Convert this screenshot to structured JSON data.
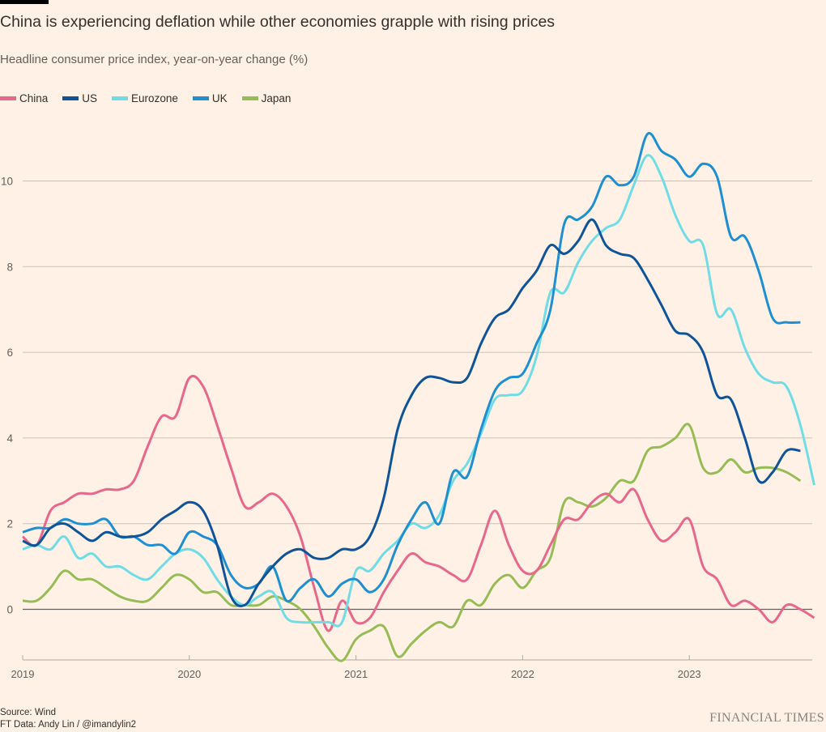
{
  "header": {
    "title": "China is experiencing deflation while other economies grapple with rising prices",
    "subtitle": "Headline consumer price index, year-on-year change (%)"
  },
  "footer": {
    "source": "Source: Wind",
    "credit": "FT Data: Andy Lin / @imandylin2",
    "brand": "FINANCIAL TIMES"
  },
  "chart_data": {
    "type": "line",
    "title": "China is experiencing deflation while other economies grapple with rising prices",
    "subtitle": "Headline consumer price index, year-on-year change (%)",
    "xlabel": "",
    "ylabel": "",
    "x_start": "2019-01",
    "x_unit": "month",
    "xlim": [
      "2019-01",
      "2023-10"
    ],
    "ylim": [
      -1.2,
      11.2
    ],
    "yticks": [
      0,
      2,
      4,
      6,
      8,
      10
    ],
    "xticks": [
      "2019",
      "2020",
      "2021",
      "2022",
      "2023"
    ],
    "grid": true,
    "legend": "top-left",
    "series": [
      {
        "name": "China",
        "color": "#e8678c",
        "values": [
          1.7,
          1.5,
          2.3,
          2.5,
          2.7,
          2.7,
          2.8,
          2.8,
          3.0,
          3.8,
          4.5,
          4.5,
          5.4,
          5.2,
          4.3,
          3.3,
          2.4,
          2.5,
          2.7,
          2.4,
          1.7,
          0.5,
          -0.5,
          0.2,
          -0.3,
          -0.2,
          0.4,
          0.9,
          1.3,
          1.1,
          1.0,
          0.8,
          0.7,
          1.5,
          2.3,
          1.5,
          0.9,
          0.9,
          1.5,
          2.1,
          2.1,
          2.5,
          2.7,
          2.5,
          2.8,
          2.1,
          1.6,
          1.8,
          2.1,
          1.0,
          0.7,
          0.1,
          0.2,
          0.0,
          -0.3,
          0.1,
          0.0,
          -0.2
        ]
      },
      {
        "name": "US",
        "color": "#0f5499",
        "values": [
          1.6,
          1.5,
          1.9,
          2.0,
          1.8,
          1.6,
          1.8,
          1.7,
          1.7,
          1.8,
          2.1,
          2.3,
          2.5,
          2.3,
          1.5,
          0.3,
          0.1,
          0.6,
          1.0,
          1.3,
          1.4,
          1.2,
          1.2,
          1.4,
          1.4,
          1.7,
          2.6,
          4.2,
          5.0,
          5.4,
          5.4,
          5.3,
          5.4,
          6.2,
          6.8,
          7.0,
          7.5,
          7.9,
          8.5,
          8.3,
          8.6,
          9.1,
          8.5,
          8.3,
          8.2,
          7.7,
          7.1,
          6.5,
          6.4,
          6.0,
          5.0,
          4.9,
          4.0,
          3.0,
          3.2,
          3.7,
          3.7
        ]
      },
      {
        "name": "Eurozone",
        "color": "#70dce6",
        "values": [
          1.4,
          1.5,
          1.4,
          1.7,
          1.2,
          1.3,
          1.0,
          1.0,
          0.8,
          0.7,
          1.0,
          1.3,
          1.4,
          1.2,
          0.7,
          0.3,
          0.1,
          0.3,
          0.4,
          -0.2,
          -0.3,
          -0.3,
          -0.3,
          -0.3,
          0.9,
          0.9,
          1.3,
          1.6,
          2.0,
          1.9,
          2.2,
          3.0,
          3.4,
          4.1,
          4.9,
          5.0,
          5.1,
          5.9,
          7.4,
          7.4,
          8.1,
          8.6,
          8.9,
          9.1,
          9.9,
          10.6,
          10.1,
          9.2,
          8.6,
          8.5,
          6.9,
          7.0,
          6.1,
          5.5,
          5.3,
          5.2,
          4.3,
          2.9
        ]
      },
      {
        "name": "UK",
        "color": "#1e8fd2",
        "values": [
          1.8,
          1.9,
          1.9,
          2.1,
          2.0,
          2.0,
          2.1,
          1.7,
          1.7,
          1.5,
          1.5,
          1.3,
          1.8,
          1.7,
          1.5,
          0.8,
          0.5,
          0.6,
          1.0,
          0.2,
          0.5,
          0.7,
          0.3,
          0.6,
          0.7,
          0.4,
          0.7,
          1.5,
          2.1,
          2.5,
          2.0,
          3.2,
          3.1,
          4.2,
          5.1,
          5.4,
          5.5,
          6.2,
          7.0,
          9.0,
          9.1,
          9.4,
          10.1,
          9.9,
          10.1,
          11.1,
          10.7,
          10.5,
          10.1,
          10.4,
          10.1,
          8.7,
          8.7,
          7.9,
          6.8,
          6.7,
          6.7
        ]
      },
      {
        "name": "Japan",
        "color": "#96bc56",
        "values": [
          0.2,
          0.2,
          0.5,
          0.9,
          0.7,
          0.7,
          0.5,
          0.3,
          0.2,
          0.2,
          0.5,
          0.8,
          0.7,
          0.4,
          0.4,
          0.1,
          0.1,
          0.1,
          0.3,
          0.2,
          0.0,
          -0.4,
          -0.9,
          -1.2,
          -0.7,
          -0.5,
          -0.4,
          -1.1,
          -0.8,
          -0.5,
          -0.3,
          -0.4,
          0.2,
          0.1,
          0.6,
          0.8,
          0.5,
          0.9,
          1.2,
          2.5,
          2.5,
          2.4,
          2.6,
          3.0,
          3.0,
          3.7,
          3.8,
          4.0,
          4.3,
          3.3,
          3.2,
          3.5,
          3.2,
          3.3,
          3.3,
          3.2,
          3.0
        ]
      }
    ]
  }
}
